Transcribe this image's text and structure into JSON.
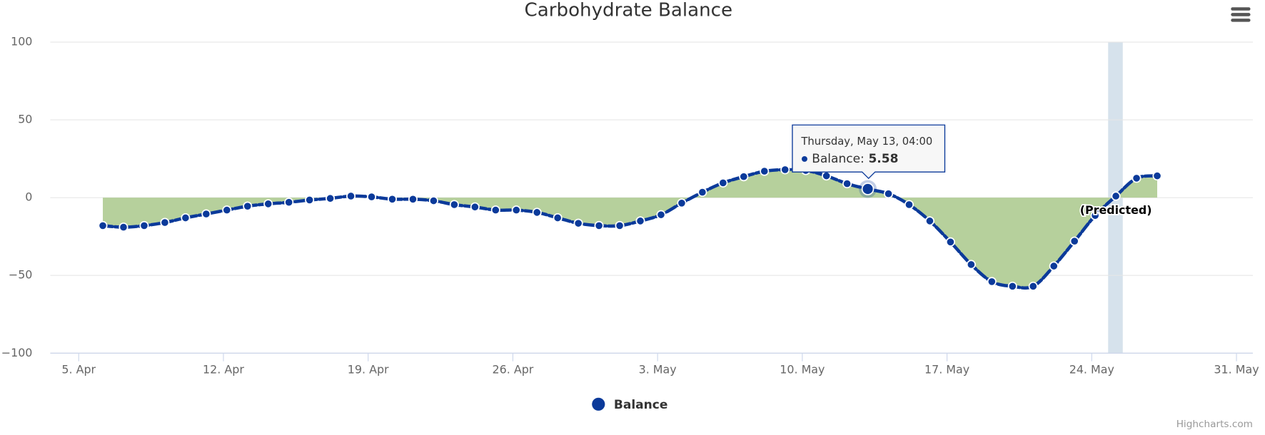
{
  "chart_data": {
    "type": "areaspline",
    "title": "Carbohydrate Balance",
    "x": [
      "04-06T04:00",
      "04-07T04:00",
      "04-08T04:00",
      "04-09T04:00",
      "04-10T04:00",
      "04-11T04:00",
      "04-12T04:00",
      "04-13T04:00",
      "04-14T04:00",
      "04-15T04:00",
      "04-16T04:00",
      "04-17T04:00",
      "04-18T04:00",
      "04-19T04:00",
      "04-20T04:00",
      "04-21T04:00",
      "04-22T04:00",
      "04-23T04:00",
      "04-24T04:00",
      "04-25T04:00",
      "04-26T04:00",
      "04-27T04:00",
      "04-28T04:00",
      "04-29T04:00",
      "04-30T04:00",
      "05-01T04:00",
      "05-02T04:00",
      "05-03T04:00",
      "05-04T04:00",
      "05-05T04:00",
      "05-06T04:00",
      "05-07T04:00",
      "05-08T04:00",
      "05-09T04:00",
      "05-10T04:00",
      "05-11T04:00",
      "05-12T04:00",
      "05-13T04:00",
      "05-14T04:00",
      "05-15T04:00",
      "05-16T04:00",
      "05-17T04:00",
      "05-18T04:00",
      "05-19T04:00",
      "05-20T04:00",
      "05-21T04:00",
      "05-22T04:00",
      "05-23T04:00",
      "05-24T04:00",
      "05-25T04:00",
      "05-26T04:00",
      "05-27T04:00"
    ],
    "series": [
      {
        "name": "Balance",
        "color": "#0b3a9a",
        "fill": "#b6d09c",
        "values": [
          -18,
          -19,
          -18,
          -16,
          -13,
          -10.5,
          -8,
          -5.5,
          -4,
          -3,
          -1.5,
          -0.5,
          1,
          0.5,
          -1,
          -1,
          -2,
          -4.5,
          -6,
          -8,
          -8,
          -9.5,
          -13,
          -16.5,
          -18,
          -18,
          -15,
          -11,
          -3.5,
          3.5,
          9.5,
          13.5,
          17,
          18,
          17.5,
          14,
          9,
          5.58,
          2.5,
          -4.5,
          -15,
          -28.5,
          -43,
          -54,
          -57,
          -57,
          -44,
          -28,
          -11.5,
          1,
          12.5,
          14
        ]
      }
    ],
    "xlim": [
      "04-03T15:00",
      "05-31T19:00"
    ],
    "xticks": [
      {
        "value": "04-05T00:00",
        "label": "5. Apr"
      },
      {
        "value": "04-12T00:00",
        "label": "12. Apr"
      },
      {
        "value": "04-19T00:00",
        "label": "19. Apr"
      },
      {
        "value": "04-26T00:00",
        "label": "26. Apr"
      },
      {
        "value": "05-03T00:00",
        "label": "3. May"
      },
      {
        "value": "05-10T00:00",
        "label": "10. May"
      },
      {
        "value": "05-17T00:00",
        "label": "17. May"
      },
      {
        "value": "05-24T00:00",
        "label": "24. May"
      },
      {
        "value": "05-31T00:00",
        "label": "31. May"
      }
    ],
    "ylim": [
      -100,
      100
    ],
    "yticks": [
      100,
      50,
      0,
      {
        "value": -50,
        "label": "−50"
      },
      {
        "value": -100,
        "label": "−100"
      }
    ],
    "grid": true,
    "plot_band": {
      "from": "05-24T19:00",
      "to": "05-25T12:00",
      "color": "#d6e2ec"
    },
    "annotations": [
      {
        "x": "05-25T04:00",
        "text": "(Predicted)"
      }
    ],
    "tooltip": {
      "header": "Thursday, May 13, 04:00",
      "label": "Balance:",
      "x": "05-13T04:00"
    },
    "legend": "bottom",
    "credits": "Highcharts.com"
  }
}
